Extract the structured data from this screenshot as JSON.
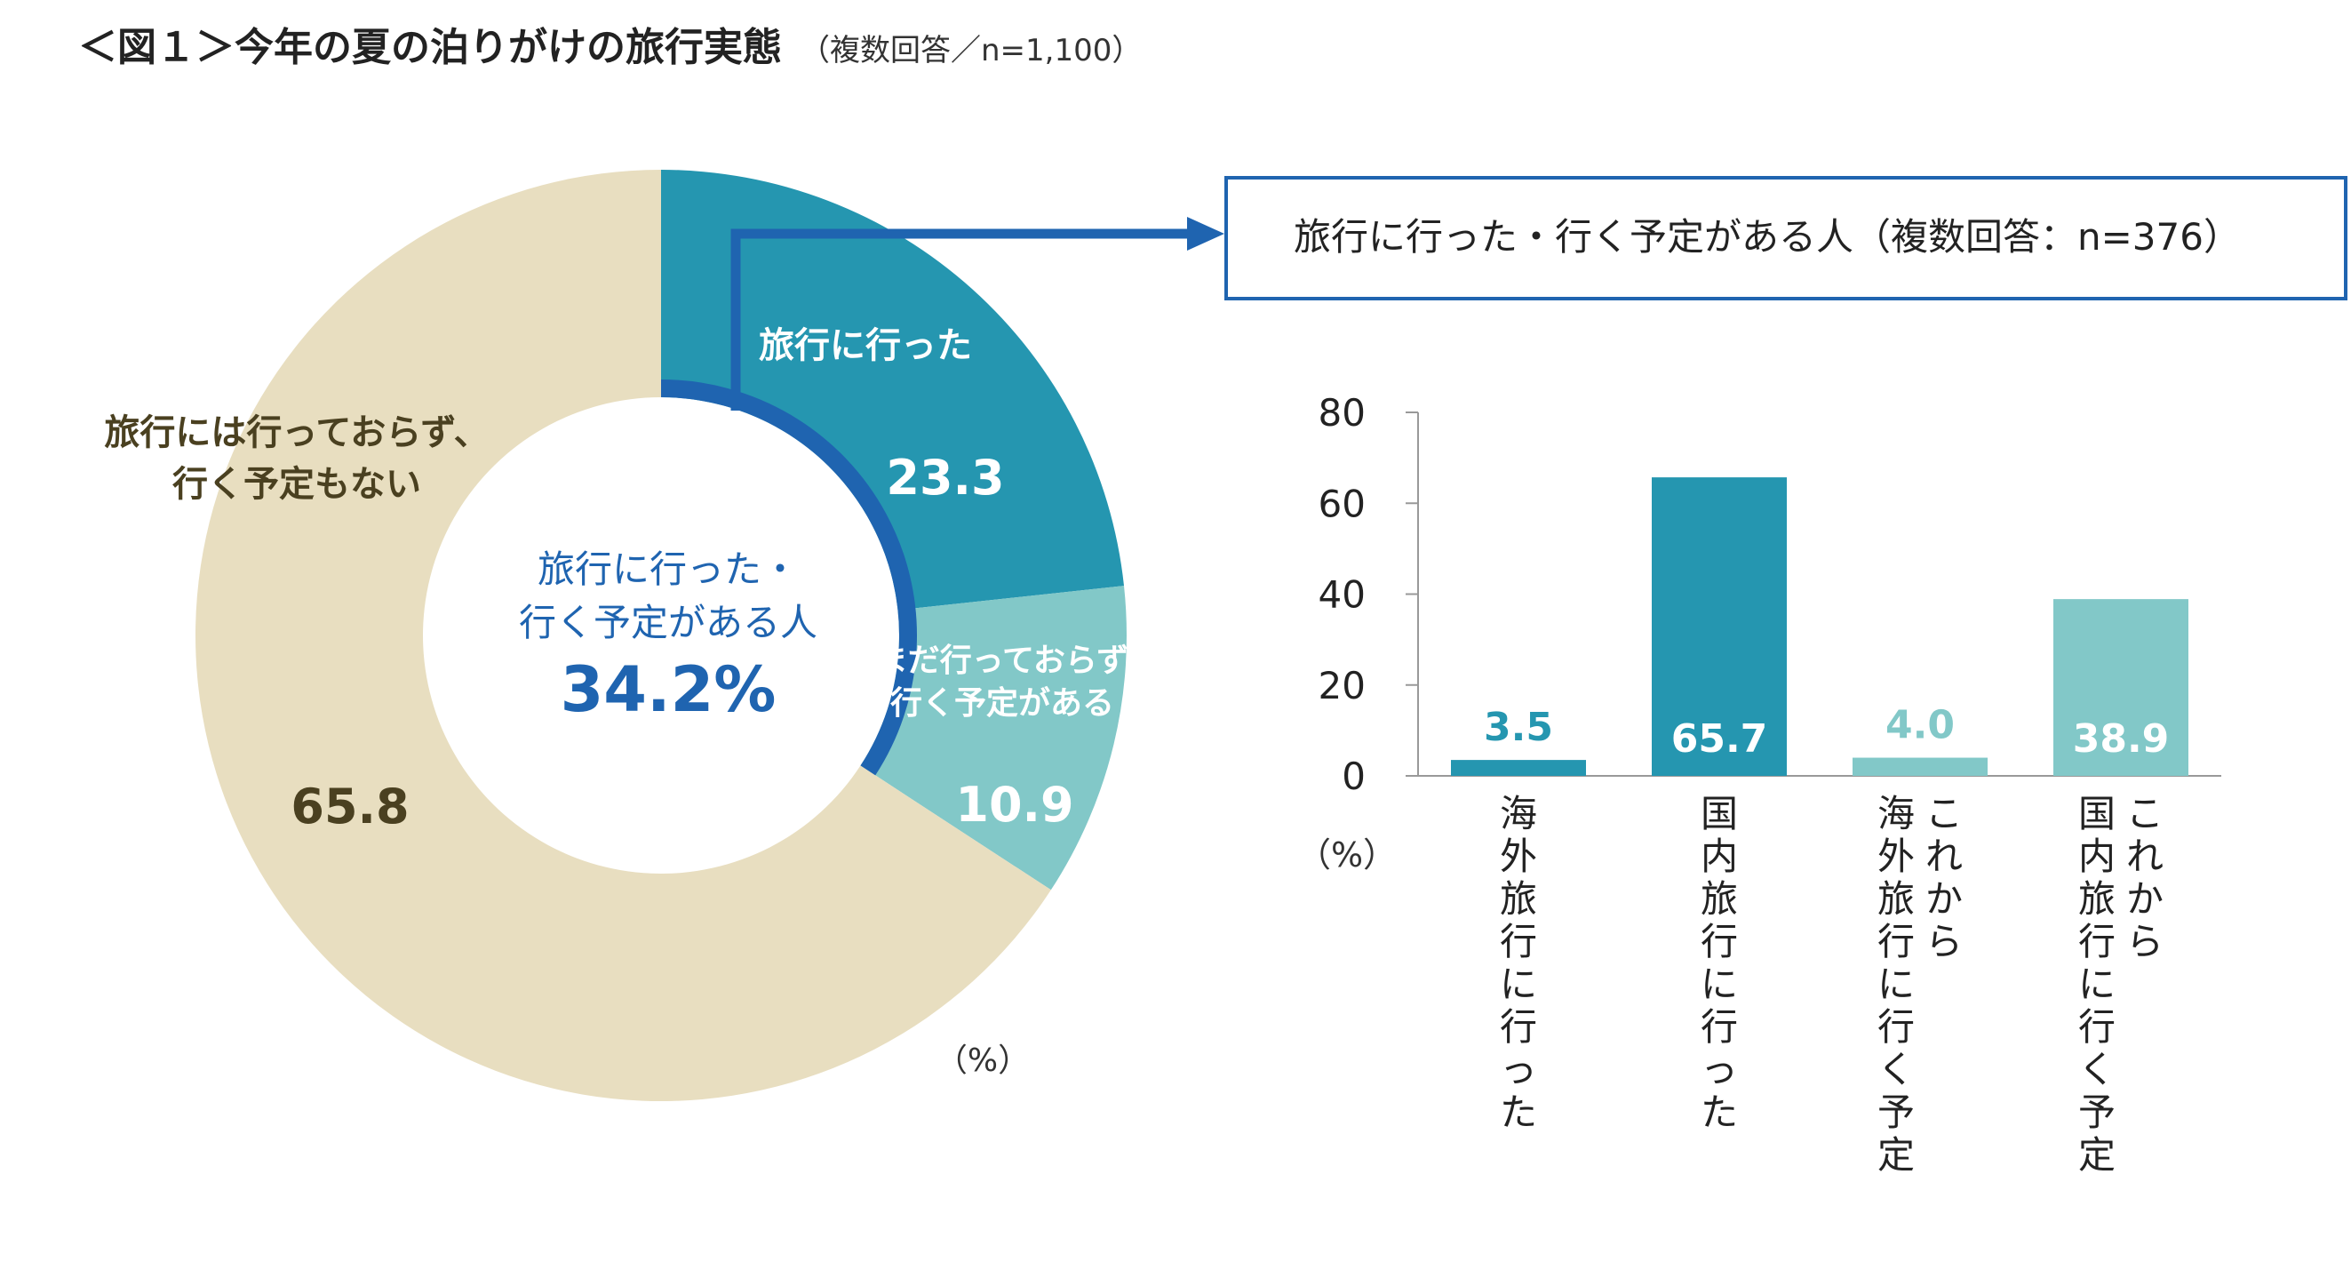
{
  "title": {
    "main": "＜図１＞今年の夏の泊りがけの旅行実態",
    "sub": "（複数回答／n=1,100）"
  },
  "colors": {
    "went": "#2596b0",
    "planned": "#82c8c8",
    "none": "#e8dec0",
    "accent_blue": "#1f64b0",
    "dark_text": "#4a4020"
  },
  "chart_data": [
    {
      "type": "pie",
      "variant": "donut",
      "unit_label": "（%）",
      "slices": [
        {
          "name_lines": [
            "旅行に行った"
          ],
          "value": 23.3,
          "value_label": "23.3",
          "color": "#2596b0"
        },
        {
          "name_lines": [
            "まだ行っておらず",
            "行く予定がある"
          ],
          "value": 10.9,
          "value_label": "10.9",
          "color": "#82c8c8"
        },
        {
          "name_lines": [
            "旅行には行っておらず、",
            "行く予定もない"
          ],
          "value": 65.8,
          "value_label": "65.8",
          "color": "#e8dec0"
        }
      ],
      "center": {
        "line1": "旅行に行った・",
        "line2": "行く予定がある人",
        "value": "34.2%"
      }
    },
    {
      "type": "bar",
      "title": "旅行に行った・行く予定がある人（複数回答：n=376）",
      "ylabel": "（%）",
      "ylim": [
        0,
        80
      ],
      "yticks": [
        0,
        20,
        40,
        60,
        80
      ],
      "categories": [
        {
          "lines": [
            "海外旅行に行った"
          ]
        },
        {
          "lines": [
            "国内旅行に行った"
          ]
        },
        {
          "lines": [
            "これから",
            "海外旅行に行く予定"
          ]
        },
        {
          "lines": [
            "これから",
            "国内旅行に行く予定"
          ]
        }
      ],
      "values": [
        3.5,
        65.7,
        4.0,
        38.9
      ],
      "value_labels": [
        "3.5",
        "65.7",
        "4.0",
        "38.9"
      ],
      "bar_colors": [
        "#2596b0",
        "#2596b0",
        "#82c8c8",
        "#82c8c8"
      ]
    }
  ]
}
